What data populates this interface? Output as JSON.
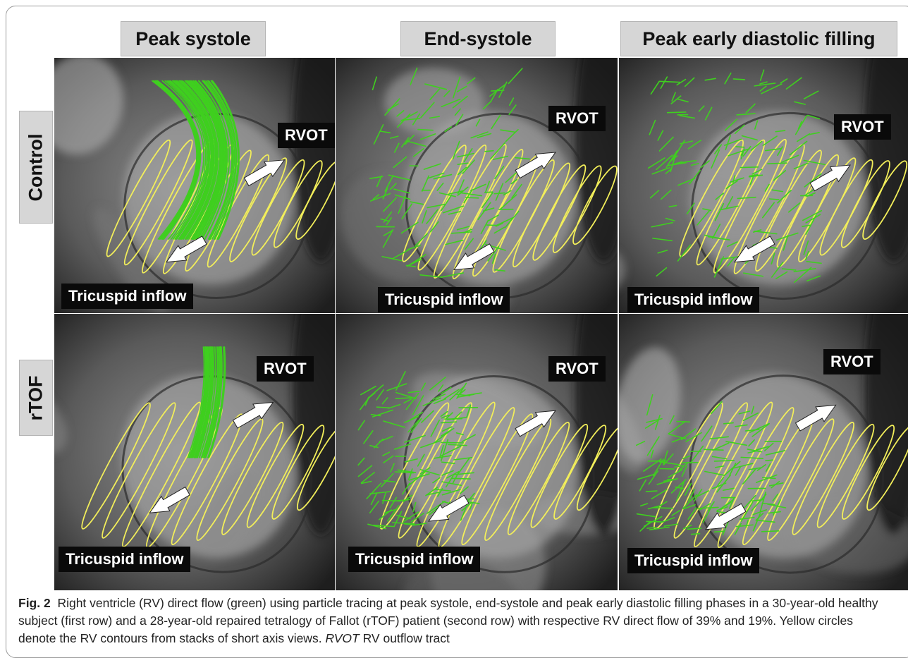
{
  "columns": [
    "Peak systole",
    "End-systole",
    "Peak early diastolic filling"
  ],
  "rows": [
    "Control",
    "rTOF"
  ],
  "labels": {
    "rvot": "RVOT",
    "tricuspid": "Tricuspid inflow"
  },
  "caption": {
    "fig_label": "Fig. 2",
    "text_1": "Right ventricle (RV) direct flow (green) using particle tracing at peak systole, end-systole and peak early diastolic filling phases in a 30-year-old healthy subject (first row) and a 28-year-old repaired tetralogy of Fallot (rTOF) patient (second row) with respective RV direct flow of 39% and 19%. Yellow circles denote the RV contours from stacks of short axis views.",
    "abbr": "RVOT",
    "text_2": "RV outflow tract"
  },
  "colors": {
    "flow": "#3fcf1f",
    "contour": "#f2ee5a",
    "label_bg": "#0a0a0a",
    "header_bg": "#d6d6d6"
  }
}
